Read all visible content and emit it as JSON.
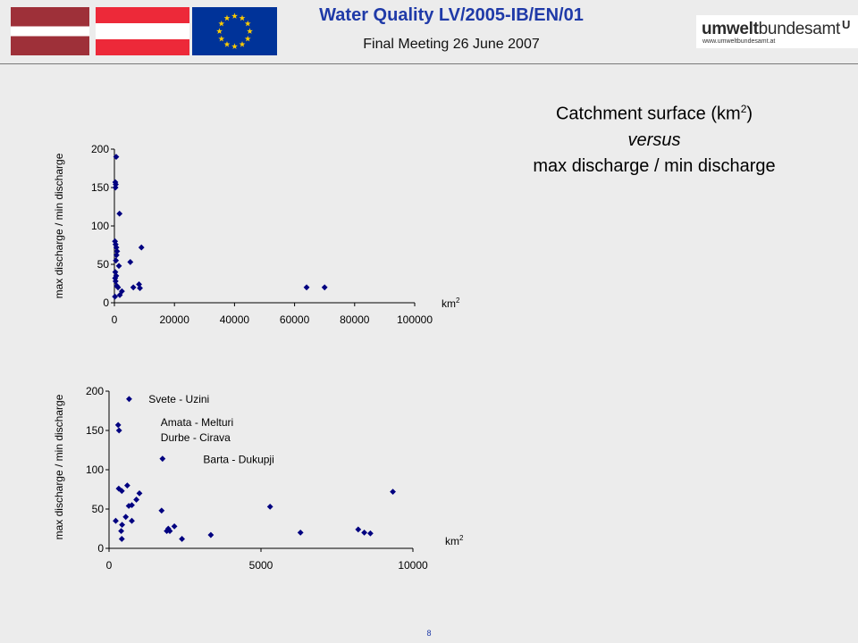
{
  "header": {
    "title": "Water Quality LV/2005-IB/EN/01",
    "subtitle": "Final Meeting 26 June 2007",
    "logo_main_bold": "umwelt",
    "logo_main_thin": "bundesamt",
    "logo_url": "www.umweltbundesamt.at",
    "logo_mark": "U"
  },
  "heading": {
    "line1_prefix": "Catchment surface (km",
    "line1_sup": "2",
    "line1_suffix": ")",
    "line2": "versus",
    "line3": "max discharge / min discharge"
  },
  "page_number": "8",
  "colors": {
    "marker": "#000080",
    "background": "#ececec",
    "title": "#1f3aa8"
  },
  "chart_data": [
    {
      "type": "scatter",
      "ylabel": "max discharge / min discharge",
      "xlabel_prefix": "km",
      "xlabel_sup": "2",
      "xlim": [
        0,
        100000
      ],
      "ylim": [
        0,
        200
      ],
      "xticks": [
        0,
        20000,
        40000,
        60000,
        80000,
        100000
      ],
      "yticks": [
        0,
        50,
        100,
        150,
        200
      ],
      "grid": false,
      "points": [
        {
          "x": 600,
          "y": 190
        },
        {
          "x": 300,
          "y": 157
        },
        {
          "x": 450,
          "y": 154
        },
        {
          "x": 350,
          "y": 150
        },
        {
          "x": 1700,
          "y": 116
        },
        {
          "x": 200,
          "y": 80
        },
        {
          "x": 400,
          "y": 76
        },
        {
          "x": 650,
          "y": 72
        },
        {
          "x": 900,
          "y": 67
        },
        {
          "x": 700,
          "y": 62
        },
        {
          "x": 500,
          "y": 55
        },
        {
          "x": 1500,
          "y": 48
        },
        {
          "x": 300,
          "y": 40
        },
        {
          "x": 600,
          "y": 35
        },
        {
          "x": 250,
          "y": 32
        },
        {
          "x": 400,
          "y": 28
        },
        {
          "x": 800,
          "y": 22
        },
        {
          "x": 1200,
          "y": 20
        },
        {
          "x": 2500,
          "y": 15
        },
        {
          "x": 1800,
          "y": 10
        },
        {
          "x": 200,
          "y": 8
        },
        {
          "x": 5300,
          "y": 53
        },
        {
          "x": 9000,
          "y": 72
        },
        {
          "x": 8200,
          "y": 24
        },
        {
          "x": 8500,
          "y": 19
        },
        {
          "x": 6300,
          "y": 20
        },
        {
          "x": 64000,
          "y": 20
        },
        {
          "x": 70000,
          "y": 20
        }
      ]
    },
    {
      "type": "scatter",
      "ylabel": "max discharge / min discharge",
      "xlabel_prefix": "km",
      "xlabel_sup": "2",
      "xlim": [
        0,
        10000
      ],
      "ylim": [
        0,
        200
      ],
      "xticks": [
        0,
        5000,
        10000
      ],
      "yticks": [
        0,
        50,
        100,
        150,
        200
      ],
      "grid": false,
      "points": [
        {
          "x": 660,
          "y": 190
        },
        {
          "x": 300,
          "y": 157
        },
        {
          "x": 330,
          "y": 150
        },
        {
          "x": 1760,
          "y": 114
        },
        {
          "x": 600,
          "y": 80
        },
        {
          "x": 320,
          "y": 76
        },
        {
          "x": 420,
          "y": 73
        },
        {
          "x": 1000,
          "y": 70
        },
        {
          "x": 9340,
          "y": 72
        },
        {
          "x": 900,
          "y": 62
        },
        {
          "x": 750,
          "y": 55
        },
        {
          "x": 650,
          "y": 54
        },
        {
          "x": 5300,
          "y": 53
        },
        {
          "x": 1730,
          "y": 48
        },
        {
          "x": 550,
          "y": 40
        },
        {
          "x": 220,
          "y": 35
        },
        {
          "x": 750,
          "y": 35
        },
        {
          "x": 430,
          "y": 30
        },
        {
          "x": 2150,
          "y": 28
        },
        {
          "x": 1950,
          "y": 25
        },
        {
          "x": 2000,
          "y": 22
        },
        {
          "x": 1900,
          "y": 22
        },
        {
          "x": 400,
          "y": 22
        },
        {
          "x": 6300,
          "y": 20
        },
        {
          "x": 8200,
          "y": 24
        },
        {
          "x": 8400,
          "y": 20
        },
        {
          "x": 8600,
          "y": 19
        },
        {
          "x": 3350,
          "y": 17
        },
        {
          "x": 2400,
          "y": 12
        },
        {
          "x": 420,
          "y": 12
        }
      ],
      "annotations": [
        {
          "text": "Svete - Uzini",
          "x": 1300,
          "y": 190
        },
        {
          "text": "Amata - Melturi",
          "x": 1700,
          "y": 160
        },
        {
          "text": "Durbe - Cirava",
          "x": 1700,
          "y": 141
        },
        {
          "text": "Barta - Dukupji",
          "x": 3100,
          "y": 113
        }
      ]
    }
  ]
}
